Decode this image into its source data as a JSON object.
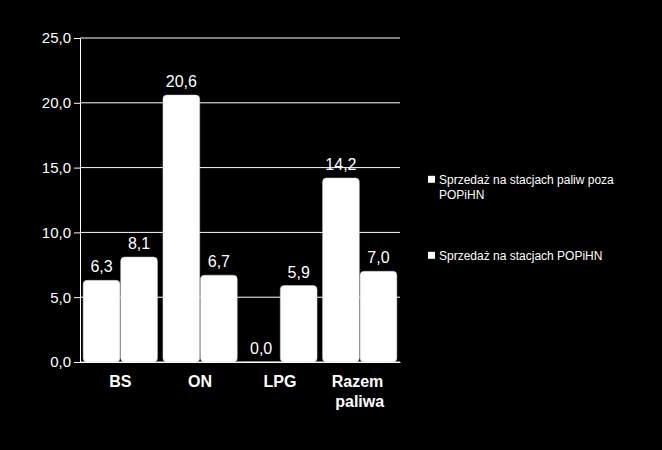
{
  "chart_data": {
    "type": "bar",
    "categories": [
      "BS",
      "ON",
      "LPG",
      "Razem paliwa"
    ],
    "series": [
      {
        "name": "Sprzedaż na stacjach paliw poza POPiHN",
        "color": "#ffffff",
        "values": [
          6.3,
          20.6,
          0.0,
          14.2
        ],
        "value_labels": [
          "6,3",
          "20,6",
          "0,0",
          "14,2"
        ]
      },
      {
        "name": "Sprzedaż na stacjach POPiHN",
        "color": "#ffffff",
        "values": [
          8.1,
          6.7,
          5.9,
          7.0
        ],
        "value_labels": [
          "8,1",
          "6,7",
          "5,9",
          "7,0"
        ]
      }
    ],
    "ylim": [
      0,
      25
    ],
    "yticks": [
      {
        "value": 0,
        "label": "0,0"
      },
      {
        "value": 5,
        "label": "5,0"
      },
      {
        "value": 10,
        "label": "10,0"
      },
      {
        "value": 15,
        "label": "15,0"
      },
      {
        "value": 20,
        "label": "20,0"
      },
      {
        "value": 25,
        "label": "25,0"
      }
    ],
    "grid": true,
    "legend": "right",
    "data_labels": true
  }
}
